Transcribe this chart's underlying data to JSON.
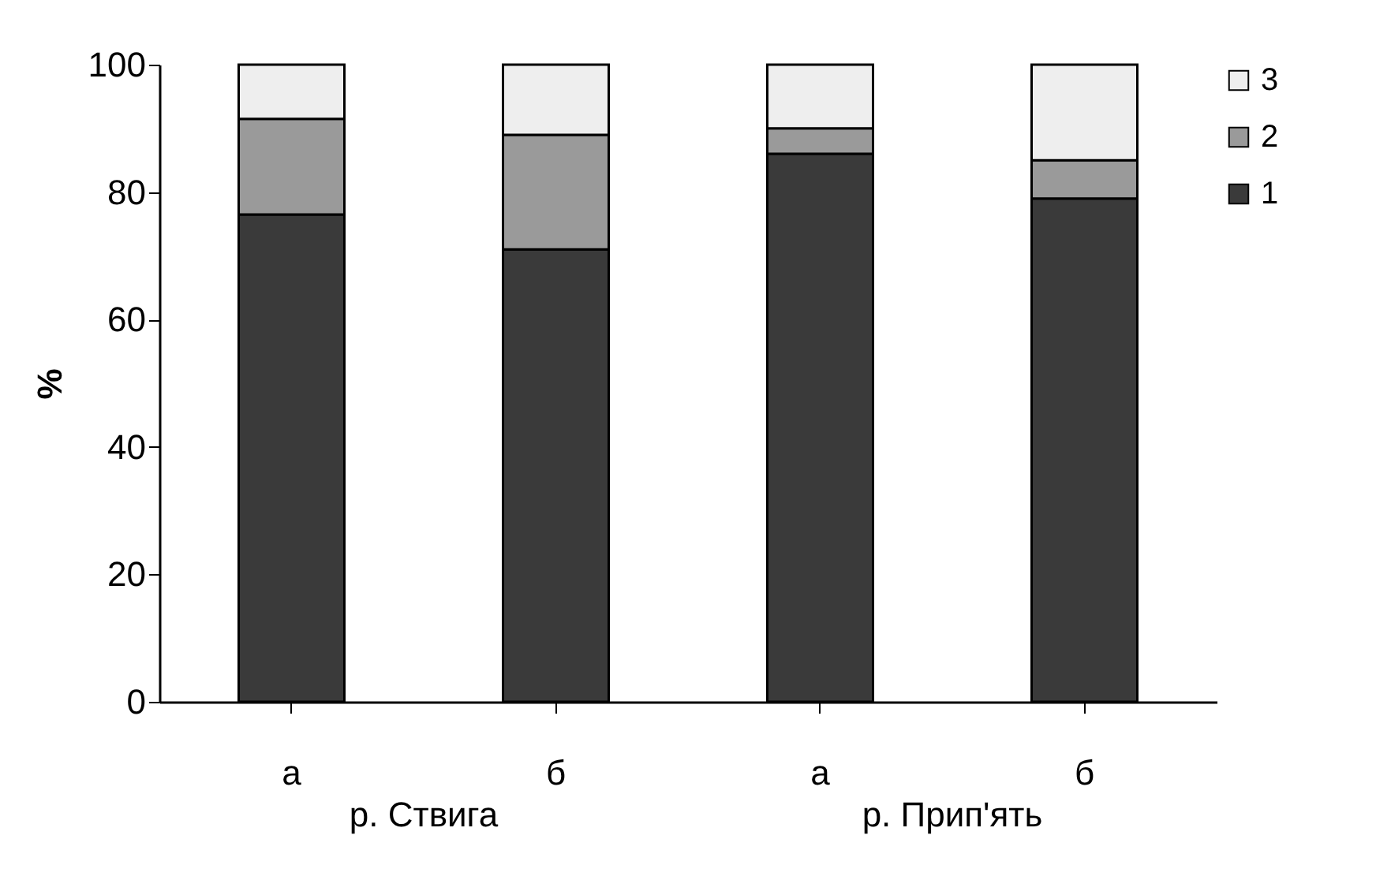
{
  "chart_data": {
    "type": "bar",
    "stacked": true,
    "ylabel": "%",
    "categories": [
      "а",
      "б",
      "а",
      "б"
    ],
    "annotations": [
      "р. Ствига",
      "р. Прип'ять"
    ],
    "series": [
      {
        "name": "1",
        "color": "#3a3a3a",
        "values": [
          76.5,
          71,
          86,
          79
        ]
      },
      {
        "name": "2",
        "color": "#9a9a9a",
        "values": [
          15,
          18,
          4,
          6
        ]
      },
      {
        "name": "3",
        "color": "#eeeeee",
        "values": [
          8.5,
          11,
          10,
          15
        ]
      }
    ],
    "ylim": [
      0,
      100
    ],
    "yticks": [
      0,
      20,
      40,
      60,
      80,
      100
    ],
    "grid": false,
    "legend": "right"
  }
}
